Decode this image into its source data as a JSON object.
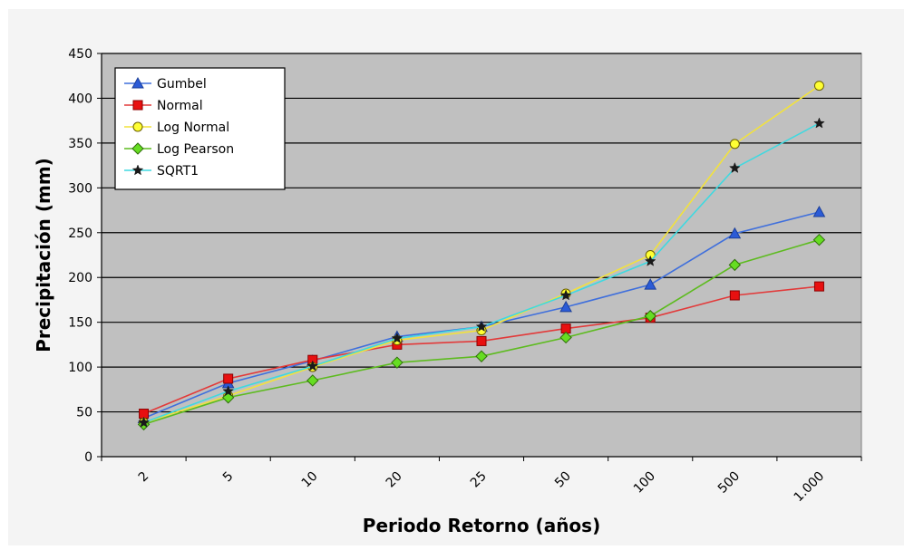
{
  "chart_data": {
    "type": "line",
    "xlabel": "Periodo Retorno (años)",
    "ylabel": "Precipitación (mm)",
    "categories": [
      "2",
      "5",
      "10",
      "20",
      "25",
      "50",
      "100",
      "500",
      "1.000"
    ],
    "ylim": [
      0,
      450
    ],
    "yticks": [
      0,
      50,
      100,
      150,
      200,
      250,
      300,
      350,
      400,
      450
    ],
    "grid": true,
    "legend_position": "top-left",
    "plot_background": "#c0c0c0",
    "series": [
      {
        "name": "Gumbel",
        "marker": "triangle",
        "color": "#3f6fdc",
        "marker_fill": "#2b5bd7",
        "values": [
          43,
          82,
          107,
          134,
          145,
          167,
          192,
          249,
          273
        ]
      },
      {
        "name": "Normal",
        "marker": "square",
        "color": "#e23a3a",
        "marker_fill": "#e81010",
        "values": [
          48,
          87,
          108,
          125,
          129,
          143,
          155,
          180,
          190
        ]
      },
      {
        "name": "Log Normal",
        "marker": "circle",
        "color": "#f2e23c",
        "marker_fill": "#ffff33",
        "values": [
          38,
          68,
          100,
          130,
          141,
          182,
          225,
          349,
          414
        ]
      },
      {
        "name": "Log Pearson",
        "marker": "diamond",
        "color": "#5dbb1f",
        "marker_fill": "#66dd22",
        "values": [
          36,
          66,
          85,
          105,
          112,
          133,
          157,
          214,
          242
        ]
      },
      {
        "name": "SQRT1",
        "marker": "star",
        "color": "#3fd9e0",
        "marker_fill": "#1a1a1a",
        "values": [
          38,
          73,
          101,
          132,
          145,
          180,
          218,
          322,
          372
        ]
      }
    ]
  }
}
